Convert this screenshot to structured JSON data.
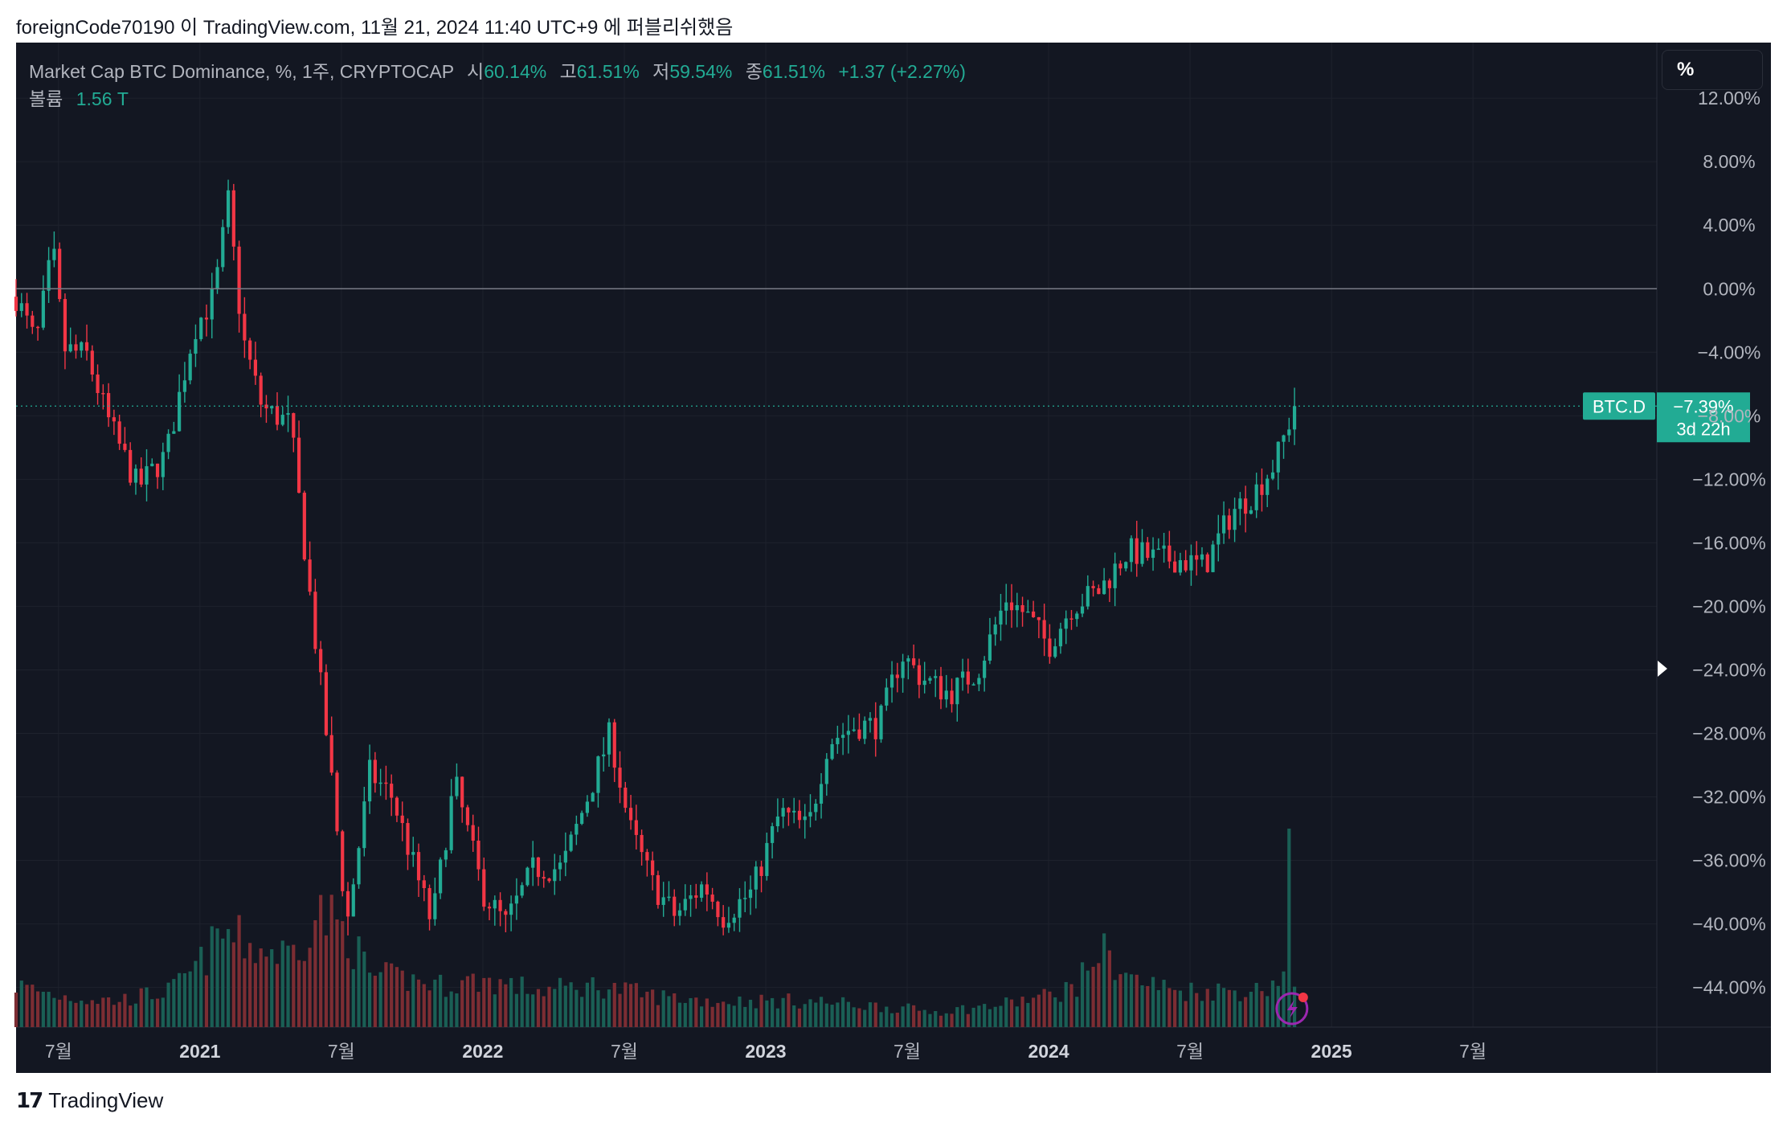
{
  "header": {
    "publish_line": "foreignCode70190 이 TradingView.com, 11월 21, 2024 11:40 UTC+9 에 퍼블리쉬했음"
  },
  "legend": {
    "title": "Market Cap BTC Dominance, %, 1주, CRYPTOCAP",
    "open_label": "시",
    "open_value": "60.14%",
    "high_label": "고",
    "high_value": "61.51%",
    "low_label": "저",
    "low_value": "59.54%",
    "close_label": "종",
    "close_value": "61.51%",
    "change": "+1.37 (+2.27%)",
    "volume_label": "볼륨",
    "volume_value": "1.56 T"
  },
  "controls": {
    "percent_button": "%"
  },
  "price_badge": {
    "symbol": "BTC.D",
    "value": "−7.39%",
    "countdown": "3d 22h"
  },
  "footer": {
    "brand": "TradingView"
  },
  "colors": {
    "background": "#131722",
    "up": "#22ab94",
    "down": "#f23645",
    "vol_up": "#1a5f55",
    "vol_down": "#7c2d33"
  },
  "chart_data": {
    "type": "candlestick",
    "y_axis": {
      "scale": "percent",
      "labels": [
        "12.00%",
        "8.00%",
        "4.00%",
        "0.00%",
        "−4.00%",
        "−8.00%",
        "−12.00%",
        "−16.00%",
        "−20.00%",
        "−24.00%",
        "−28.00%",
        "−32.00%",
        "−36.00%",
        "−40.00%",
        "−44.00%"
      ],
      "ticks": [
        12,
        8,
        4,
        0,
        -4,
        -8,
        -12,
        -16,
        -20,
        -24,
        -28,
        -32,
        -36,
        -40,
        -44
      ],
      "range": [
        -46.5,
        15.5
      ]
    },
    "x_axis": {
      "range": [
        2020.35,
        2026.15
      ],
      "ticks": [
        {
          "label": "7월",
          "pos": 2020.5,
          "bold": false
        },
        {
          "label": "2021",
          "pos": 2021.0,
          "bold": true
        },
        {
          "label": "7월",
          "pos": 2021.5,
          "bold": false
        },
        {
          "label": "2022",
          "pos": 2022.0,
          "bold": true
        },
        {
          "label": "7월",
          "pos": 2022.5,
          "bold": false
        },
        {
          "label": "2023",
          "pos": 2023.0,
          "bold": true
        },
        {
          "label": "7월",
          "pos": 2023.5,
          "bold": false
        },
        {
          "label": "2024",
          "pos": 2024.0,
          "bold": true
        },
        {
          "label": "7월",
          "pos": 2024.5,
          "bold": false
        },
        {
          "label": "2025",
          "pos": 2025.0,
          "bold": true
        },
        {
          "label": "7월",
          "pos": 2025.5,
          "bold": false
        }
      ]
    },
    "last_value": -7.39,
    "baseline": 0,
    "anchors": [
      [
        2020.35,
        -0.5
      ],
      [
        2020.42,
        -3.5
      ],
      [
        2020.48,
        2.5
      ],
      [
        2020.52,
        -3.8
      ],
      [
        2020.6,
        -4.2
      ],
      [
        2020.68,
        -8.5
      ],
      [
        2020.78,
        -12.5
      ],
      [
        2020.88,
        -10.5
      ],
      [
        2020.98,
        -2.5
      ],
      [
        2021.05,
        -0.5
      ],
      [
        2021.1,
        5.5
      ],
      [
        2021.15,
        -3.0
      ],
      [
        2021.22,
        -7.5
      ],
      [
        2021.32,
        -8.5
      ],
      [
        2021.38,
        -18.0
      ],
      [
        2021.45,
        -28.5
      ],
      [
        2021.52,
        -40.0
      ],
      [
        2021.6,
        -30.5
      ],
      [
        2021.68,
        -32.0
      ],
      [
        2021.75,
        -36.0
      ],
      [
        2021.82,
        -40.0
      ],
      [
        2021.9,
        -31.0
      ],
      [
        2022.0,
        -38.0
      ],
      [
        2022.08,
        -40.0
      ],
      [
        2022.18,
        -36.5
      ],
      [
        2022.28,
        -36.5
      ],
      [
        2022.38,
        -31.5
      ],
      [
        2022.45,
        -28.0
      ],
      [
        2022.52,
        -34.0
      ],
      [
        2022.6,
        -37.5
      ],
      [
        2022.68,
        -39.5
      ],
      [
        2022.78,
        -37.5
      ],
      [
        2022.85,
        -39.5
      ],
      [
        2022.95,
        -38.0
      ],
      [
        2023.05,
        -33.0
      ],
      [
        2023.15,
        -34.0
      ],
      [
        2023.22,
        -28.5
      ],
      [
        2023.32,
        -27.5
      ],
      [
        2023.4,
        -27.5
      ],
      [
        2023.48,
        -23.0
      ],
      [
        2023.55,
        -24.5
      ],
      [
        2023.65,
        -25.5
      ],
      [
        2023.75,
        -24.0
      ],
      [
        2023.85,
        -19.5
      ],
      [
        2023.92,
        -20.5
      ],
      [
        2024.0,
        -22.5
      ],
      [
        2024.08,
        -20.0
      ],
      [
        2024.18,
        -19.0
      ],
      [
        2024.28,
        -16.5
      ],
      [
        2024.38,
        -17.0
      ],
      [
        2024.45,
        -17.0
      ],
      [
        2024.55,
        -17.5
      ],
      [
        2024.65,
        -14.0
      ],
      [
        2024.72,
        -13.0
      ],
      [
        2024.8,
        -11.0
      ],
      [
        2024.87,
        -7.39
      ]
    ],
    "volume_anchors": [
      [
        2020.35,
        0.08
      ],
      [
        2020.5,
        0.06
      ],
      [
        2020.7,
        0.05
      ],
      [
        2020.9,
        0.07
      ],
      [
        2021.0,
        0.12
      ],
      [
        2021.08,
        0.18
      ],
      [
        2021.2,
        0.15
      ],
      [
        2021.32,
        0.14
      ],
      [
        2021.42,
        0.22
      ],
      [
        2021.52,
        0.18
      ],
      [
        2021.6,
        0.1
      ],
      [
        2021.75,
        0.09
      ],
      [
        2021.85,
        0.08
      ],
      [
        2022.0,
        0.09
      ],
      [
        2022.2,
        0.07
      ],
      [
        2022.4,
        0.08
      ],
      [
        2022.6,
        0.06
      ],
      [
        2022.8,
        0.05
      ],
      [
        2022.95,
        0.05
      ],
      [
        2023.15,
        0.05
      ],
      [
        2023.4,
        0.04
      ],
      [
        2023.6,
        0.03
      ],
      [
        2023.8,
        0.04
      ],
      [
        2024.0,
        0.06
      ],
      [
        2024.1,
        0.08
      ],
      [
        2024.18,
        0.15
      ],
      [
        2024.3,
        0.09
      ],
      [
        2024.45,
        0.07
      ],
      [
        2024.6,
        0.07
      ],
      [
        2024.75,
        0.07
      ],
      [
        2024.83,
        0.1
      ],
      [
        2024.87,
        0.06
      ]
    ],
    "volume_spike": {
      "x": 2024.85,
      "value": 0.38
    }
  }
}
